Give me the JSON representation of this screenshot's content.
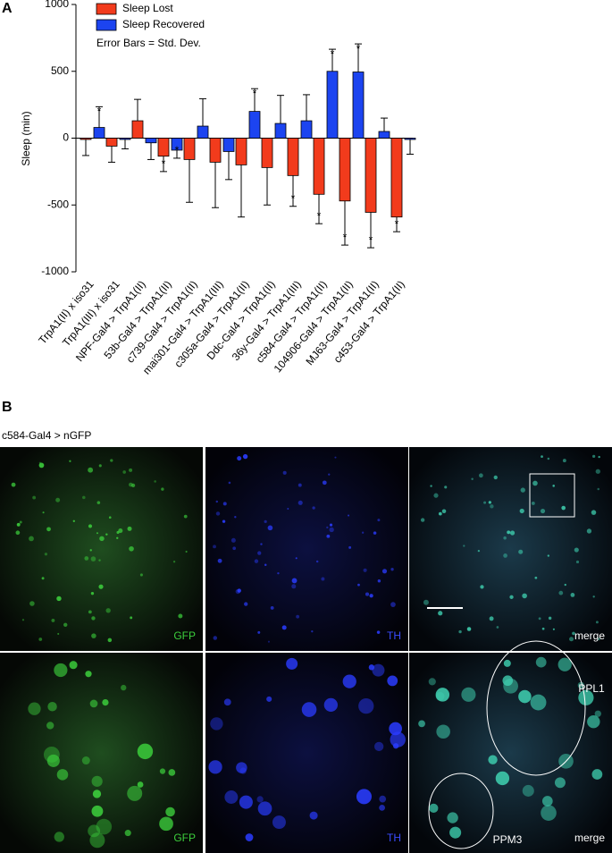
{
  "panel_a": {
    "label": "A"
  },
  "chart_data": {
    "type": "bar",
    "ylabel": "Sleep (min)",
    "note": "Error Bars = Std. Dev.",
    "categories": [
      "TrpA1(II) x iso31",
      "TrpA1(III) x iso31",
      "NPF-Gal4 > TrpA1(II)",
      "53b-Gal4 > TrpA1(II)",
      "c739-Gal4 > TrpA1(II)",
      "mai301-Gal4 > TrpA1(III)",
      "c305a-Gal4 > TrpA1(II)",
      "Ddc-Gal4 > TrpA1(II)",
      "36y-Gal4 > TrpA1(III)",
      "c584-Gal4 > TrpA1(II)",
      "104906-Gal4 > TrpA1(II)",
      "MJ63-Gal4 > TrpA1(II)",
      "c453-Gal4 > TrpA1(II)"
    ],
    "series": [
      {
        "name": "Sleep Lost",
        "color": "#f23b1c",
        "values": [
          -10,
          -60,
          130,
          -135,
          -160,
          -180,
          -200,
          -220,
          -280,
          -420,
          -470,
          -555,
          -590
        ],
        "errors": [
          120,
          120,
          160,
          115,
          320,
          340,
          390,
          280,
          230,
          220,
          330,
          265,
          110
        ],
        "significance": [
          null,
          null,
          null,
          "*",
          null,
          null,
          null,
          null,
          "*",
          "*",
          "*",
          "*",
          "*"
        ]
      },
      {
        "name": "Sleep Recovered",
        "color": "#1c44f0",
        "values": [
          80,
          -10,
          -35,
          -90,
          90,
          -100,
          200,
          110,
          130,
          500,
          495,
          50,
          -10
        ],
        "errors": [
          155,
          70,
          125,
          60,
          205,
          210,
          170,
          210,
          195,
          165,
          210,
          100,
          110
        ],
        "significance": [
          "*",
          null,
          null,
          "*",
          null,
          null,
          "*",
          null,
          null,
          "*",
          "*",
          null,
          null
        ]
      }
    ],
    "ylim": [
      -1000,
      1000
    ],
    "yticks": [
      -1000,
      -500,
      0,
      500,
      1000
    ]
  },
  "panel_b": {
    "label": "B",
    "caption": "c584-Gal4 > nGFP",
    "images": [
      {
        "label": "GFP"
      },
      {
        "label": "TH"
      },
      {
        "label": "merge"
      },
      {
        "label": "GFP"
      },
      {
        "label": "TH"
      },
      {
        "label": "merge",
        "regions": [
          "PPL1",
          "PPM3"
        ]
      }
    ]
  }
}
